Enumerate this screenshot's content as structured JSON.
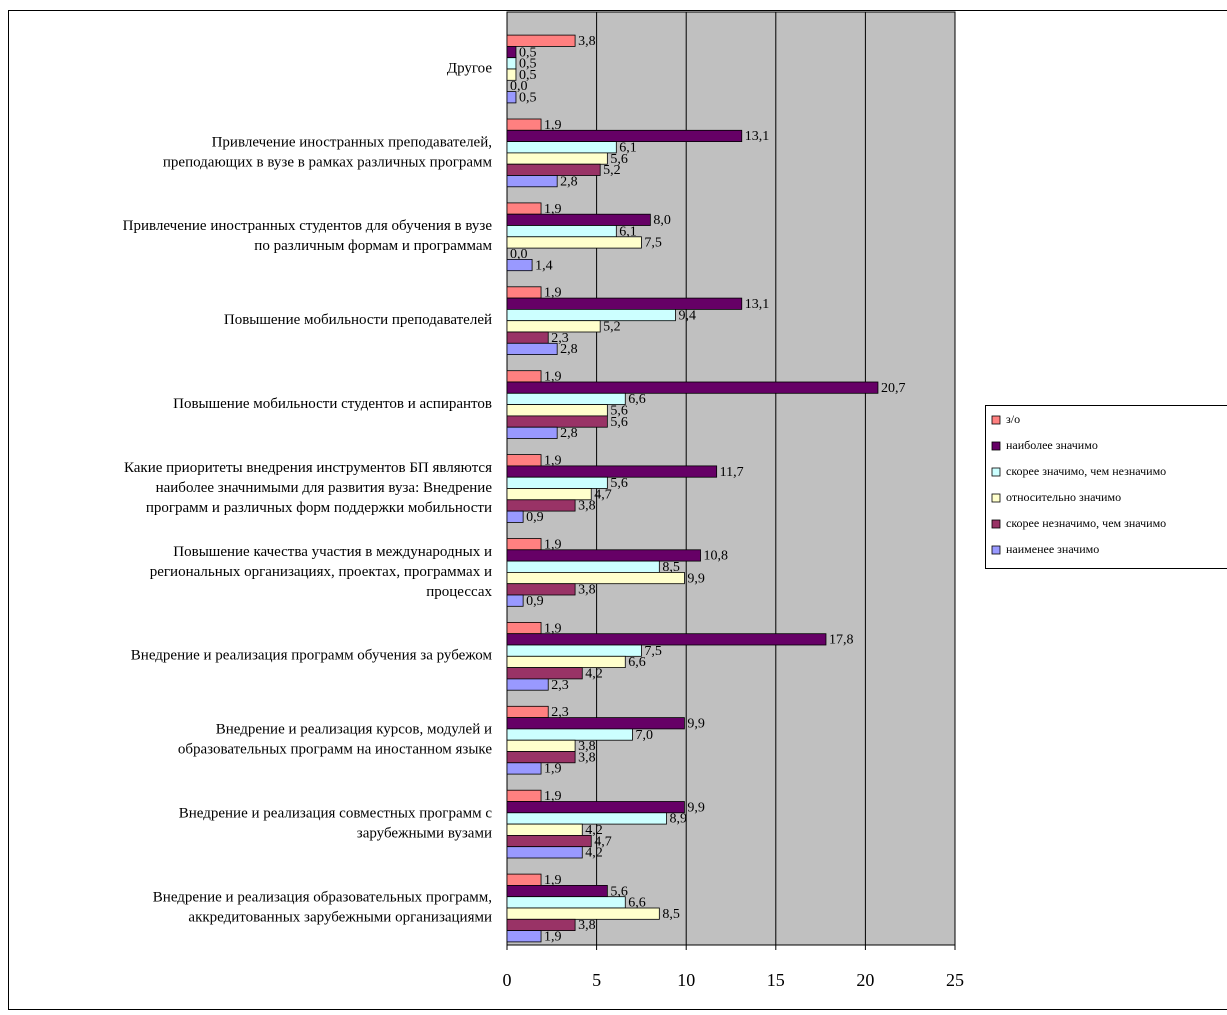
{
  "chart_data": {
    "type": "hbar",
    "categories": [
      [
        "Другое"
      ],
      [
        "Привлечение иностранных преподавателей,",
        "преподающих в вузе в рамках различных программ"
      ],
      [
        "Привлечение иностранных студентов для обучения в вузе",
        "по различным формам и программам"
      ],
      [
        "Повышение мобильности преподавателей"
      ],
      [
        "Повышение мобильности студентов и аспирантов"
      ],
      [
        "Какие приоритеты внедрения инструментов БП являются",
        "наиболее значнимыми для развития вуза: Внедрение",
        "программ и различных форм поддержки мобильности"
      ],
      [
        "Повышение качества участия в международных и",
        "региональных организациях, проектах, программах и",
        "процессах"
      ],
      [
        "Внедрение и реализация программ обучения за рубежом"
      ],
      [
        "Внедрение и реализация курсов, модулей и",
        "образовательных программ на иностанном языке"
      ],
      [
        "Внедрение и реализация совместных программ с",
        "зарубежными вузами"
      ],
      [
        "Внедрение и реализация образовательных программ,",
        "аккредитованных зарубежными организациями"
      ]
    ],
    "series": [
      {
        "name": "з/о",
        "color": "#ff8080",
        "values": [
          3.8,
          1.9,
          1.9,
          1.9,
          1.9,
          1.9,
          1.9,
          1.9,
          2.3,
          1.9,
          1.9
        ],
        "value_labels": [
          "3,8",
          "1,9",
          "1,9",
          "1,9",
          "1,9",
          "1,9",
          "1,9",
          "1,9",
          "2,3",
          "1,9",
          "1,9"
        ]
      },
      {
        "name": "наиболее значимо",
        "color": "#660066",
        "values": [
          0.5,
          13.1,
          8.0,
          13.1,
          20.7,
          11.7,
          10.8,
          17.8,
          9.9,
          9.9,
          5.6
        ],
        "value_labels": [
          "0,5",
          "13,1",
          "8,0",
          "13,1",
          "20,7",
          "11,7",
          "10,8",
          "17,8",
          "9,9",
          "9,9",
          "5,6"
        ]
      },
      {
        "name": "скорее значимо, чем незначимо",
        "color": "#ccffff",
        "values": [
          0.5,
          6.1,
          6.1,
          9.4,
          6.6,
          5.6,
          8.5,
          7.5,
          7.0,
          8.9,
          6.6
        ],
        "value_labels": [
          "0,5",
          "6,1",
          "6,1",
          "9,4",
          "6,6",
          "5,6",
          "8,5",
          "7,5",
          "7,0",
          "8,9",
          "6,6"
        ]
      },
      {
        "name": "относительно значимо",
        "color": "#ffffcc",
        "values": [
          0.5,
          5.6,
          7.5,
          5.2,
          5.6,
          4.7,
          9.9,
          6.6,
          3.8,
          4.2,
          8.5
        ],
        "value_labels": [
          "0,5",
          "5,6",
          "7,5",
          "5,2",
          "5,6",
          "4,7",
          "9,9",
          "6,6",
          "3,8",
          "4,2",
          "8,5"
        ]
      },
      {
        "name": "скорее незначимо, чем значимо",
        "color": "#993366",
        "values": [
          0.0,
          5.2,
          0.0,
          2.3,
          5.6,
          3.8,
          3.8,
          4.2,
          3.8,
          4.7,
          3.8
        ],
        "value_labels": [
          "0,0",
          "5,2",
          "0,0",
          "2,3",
          "5,6",
          "3,8",
          "3,8",
          "4,2",
          "3,8",
          "4,7",
          "3,8"
        ]
      },
      {
        "name": "наименее значимо",
        "color": "#9999ff",
        "values": [
          0.5,
          2.8,
          1.4,
          2.8,
          2.8,
          0.9,
          0.9,
          2.3,
          1.9,
          4.2,
          1.9
        ],
        "value_labels": [
          "0,5",
          "2,8",
          "1,4",
          "2,8",
          "2,8",
          "0,9",
          "0,9",
          "2,3",
          "1,9",
          "4,2",
          "1,9"
        ]
      }
    ],
    "xlim": [
      0,
      25
    ],
    "xticks": [
      0,
      5,
      10,
      15,
      20,
      25
    ],
    "grid": true,
    "legend": "right",
    "plot_color": "#c0c0c0"
  }
}
